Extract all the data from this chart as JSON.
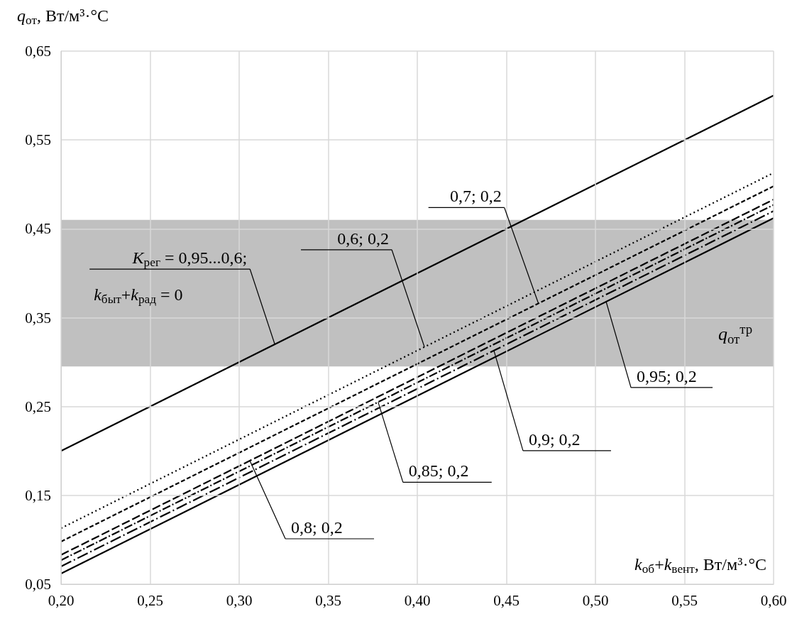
{
  "chart_data": {
    "type": "line",
    "xlabel": "k$_{об}$+k$_{вент}$, Вт/м³·°C",
    "ylabel": "q$_{от}$, Вт/м³·°C",
    "x": [
      0.2,
      0.6
    ],
    "series": [
      {
        "color": "#000000",
        "line_style": "solid",
        "values": [
          0.2,
          0.6
        ]
      },
      {
        "color": "#000000",
        "line_style": "dotted",
        "values": [
          0.113,
          0.513
        ]
      },
      {
        "color": "#000000",
        "line_style": "dashed",
        "values": [
          0.098,
          0.498
        ]
      },
      {
        "color": "#000000",
        "line_style": "dashed",
        "values": [
          0.083,
          0.483
        ]
      },
      {
        "color": "#000000",
        "line_style": "dashed",
        "values": [
          0.077,
          0.477
        ]
      },
      {
        "color": "#000000",
        "line_style": "dashed",
        "values": [
          0.07,
          0.47
        ]
      },
      {
        "color": "#000000",
        "line_style": "solid",
        "values": [
          0.062,
          0.462
        ]
      }
    ],
    "bands": [
      {
        "axis": "y",
        "from": 0.295,
        "to": 0.46,
        "label": "q$_{от}$$^{тр}$",
        "color": "#c0c0c0"
      }
    ],
    "annotations": [
      {
        "text": "K$_{рег}$ = 0,95...0,6;",
        "x": 0.32,
        "y": 0.32
      },
      "k$_{быт}$+k$_{рад}$ = 0",
      {
        "text": "0,6; 0,2",
        "x": 0.404,
        "y": 0.317
      },
      {
        "text": "0,7; 0,2",
        "x": 0.468,
        "y": 0.366
      },
      {
        "text": "0,8; 0,2",
        "x": 0.306,
        "y": 0.189
      },
      {
        "text": "0,85; 0,2",
        "x": 0.378,
        "y": 0.255
      },
      {
        "text": "0,9; 0,2",
        "x": 0.443,
        "y": 0.313
      },
      {
        "text": "0,95; 0,2",
        "x": 0.506,
        "y": 0.368
      }
    ],
    "xlim": [
      0.2,
      0.6
    ],
    "xticks": [
      {
        "value": 0.2,
        "label": "0,20"
      },
      {
        "value": 0.25,
        "label": "0,25"
      },
      {
        "value": 0.3,
        "label": "0,30"
      },
      {
        "value": 0.35,
        "label": "0,35"
      },
      {
        "value": 0.4,
        "label": "0,40"
      },
      {
        "value": 0.45,
        "label": "0,45"
      },
      {
        "value": 0.5,
        "label": "0,50"
      },
      {
        "value": 0.55,
        "label": "0,55"
      },
      {
        "value": 0.6,
        "label": "0,60"
      }
    ],
    "ylim": [
      0.05,
      0.65
    ],
    "yticks": [
      {
        "value": 0.05,
        "label": "0,05"
      },
      {
        "value": 0.15,
        "label": "0,15"
      },
      {
        "value": 0.25,
        "label": "0,25"
      },
      {
        "value": 0.35,
        "label": "0,35"
      },
      {
        "value": 0.45,
        "label": "0,45"
      },
      {
        "value": 0.55,
        "label": "0,55"
      },
      {
        "value": 0.65,
        "label": "0,65"
      }
    ],
    "grid": true
  }
}
